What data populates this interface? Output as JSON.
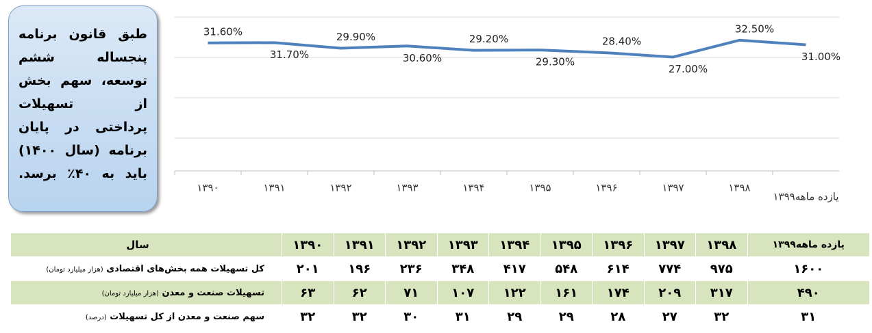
{
  "chart_data": {
    "type": "line",
    "categories": [
      "۱۳۹۰",
      "۱۳۹۱",
      "۱۳۹۲",
      "۱۳۹۳",
      "۱۳۹۴",
      "۱۳۹۵",
      "۱۳۹۶",
      "۱۳۹۷",
      "۱۳۹۸",
      "یازده ماهه۱۳۹۹"
    ],
    "series": [
      {
        "color": "#4f81bd",
        "values": [
          31.6,
          31.7,
          29.9,
          30.6,
          29.2,
          29.3,
          28.4,
          27.0,
          32.5,
          31.0
        ],
        "value_labels": [
          "31.60%",
          "31.70%",
          "29.90%",
          "30.60%",
          "29.20%",
          "29.30%",
          "28.40%",
          "27.00%",
          "32.50%",
          "31.00%"
        ]
      }
    ],
    "ylim": [
      -10,
      40
    ],
    "grid": true
  },
  "callout": {
    "lines": [
      "طبق قانون برنامه",
      "پنجساله ششم",
      "توسعه، سهم بخش",
      "از تسهیلات",
      "پرداختی در پایان",
      "برنامه (سال ۱۴۰۰)",
      "باید به ۴۰٪ برسد."
    ]
  },
  "table": {
    "header": [
      "سال",
      "۱۳۹۰",
      "۱۳۹۱",
      "۱۳۹۲",
      "۱۳۹۳",
      "۱۳۹۴",
      "۱۳۹۵",
      "۱۳۹۶",
      "۱۳۹۷",
      "۱۳۹۸",
      "۱۳۹۹یازده ماهه"
    ],
    "rows": [
      {
        "label": "کل تسهیلات همه بخش‌های اقتصادی",
        "unit": "(هزار میلیارد تومان)",
        "cells": [
          "۲۰۱",
          "۱۹۶",
          "۲۳۶",
          "۳۴۸",
          "۴۱۷",
          "۵۴۸",
          "۶۱۴",
          "۷۷۴",
          "۹۷۵",
          "۱۶۰۰"
        ]
      },
      {
        "label": "تسهیلات صنعت و معدن",
        "unit": "(هزار میلیارد تومان)",
        "cells": [
          "۶۳",
          "۶۲",
          "۷۱",
          "۱۰۷",
          "۱۲۲",
          "۱۶۱",
          "۱۷۴",
          "۲۰۹",
          "۳۱۷",
          "۴۹۰"
        ]
      },
      {
        "label": "سهم صنعت و معدن از کل تسهیلات",
        "unit": "(درصد)",
        "cells": [
          "۳۲",
          "۳۲",
          "۳۰",
          "۳۱",
          "۲۹",
          "۲۹",
          "۲۸",
          "۲۷",
          "۳۲",
          "۳۱"
        ]
      }
    ]
  }
}
